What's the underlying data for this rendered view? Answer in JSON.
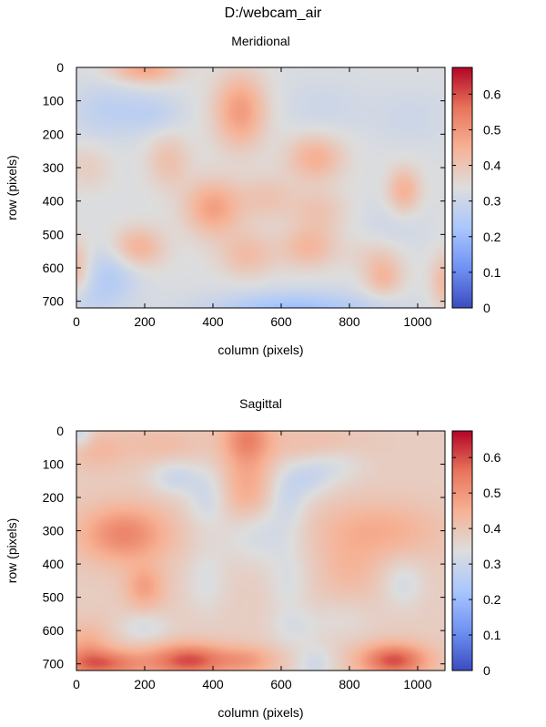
{
  "title": "D:/webcam_air",
  "colormap": {
    "name": "coolwarm",
    "stops": [
      "#3b4cc0",
      "#6f92f3",
      "#aac7fd",
      "#dddddd",
      "#f7b194",
      "#e7745b",
      "#b40426"
    ]
  },
  "chart_data": [
    {
      "type": "heatmap",
      "title": "Meridional",
      "xlabel": "column (pixels)",
      "ylabel": "row (pixels)",
      "xlim": [
        0,
        1080
      ],
      "ylim": [
        720,
        0
      ],
      "xticks": [
        "0",
        "200",
        "400",
        "600",
        "800",
        "1000"
      ],
      "yticks": [
        "0",
        "100",
        "200",
        "300",
        "400",
        "500",
        "600",
        "700"
      ],
      "colorbar": {
        "range": [
          0,
          0.675
        ],
        "ticks": [
          "0",
          "0.1",
          "0.2",
          "0.3",
          "0.4",
          "0.5",
          "0.6"
        ]
      },
      "base_value": 0.33,
      "blobs": [
        {
          "x": 200,
          "y": 5,
          "sx": 70,
          "sy": 30,
          "a": 0.14
        },
        {
          "x": 90,
          "y": 130,
          "sx": 80,
          "sy": 60,
          "a": -0.06
        },
        {
          "x": 230,
          "y": 140,
          "sx": 60,
          "sy": 40,
          "a": -0.05
        },
        {
          "x": 480,
          "y": 130,
          "sx": 55,
          "sy": 80,
          "a": 0.16
        },
        {
          "x": 270,
          "y": 280,
          "sx": 45,
          "sy": 60,
          "a": 0.08
        },
        {
          "x": 30,
          "y": 300,
          "sx": 50,
          "sy": 50,
          "a": 0.05
        },
        {
          "x": 700,
          "y": 270,
          "sx": 60,
          "sy": 50,
          "a": 0.12
        },
        {
          "x": 720,
          "y": 120,
          "sx": 90,
          "sy": 60,
          "a": -0.03
        },
        {
          "x": 980,
          "y": 150,
          "sx": 80,
          "sy": 60,
          "a": -0.03
        },
        {
          "x": 960,
          "y": 370,
          "sx": 35,
          "sy": 50,
          "a": 0.12
        },
        {
          "x": 400,
          "y": 420,
          "sx": 60,
          "sy": 60,
          "a": 0.15
        },
        {
          "x": 560,
          "y": 390,
          "sx": 60,
          "sy": 50,
          "a": 0.07
        },
        {
          "x": 710,
          "y": 430,
          "sx": 60,
          "sy": 50,
          "a": 0.07
        },
        {
          "x": 180,
          "y": 540,
          "sx": 55,
          "sy": 45,
          "a": 0.12
        },
        {
          "x": 500,
          "y": 560,
          "sx": 60,
          "sy": 50,
          "a": 0.09
        },
        {
          "x": 680,
          "y": 540,
          "sx": 60,
          "sy": 45,
          "a": 0.1
        },
        {
          "x": 880,
          "y": 560,
          "sx": 60,
          "sy": 40,
          "a": 0.05
        },
        {
          "x": 100,
          "y": 620,
          "sx": 60,
          "sy": 60,
          "a": -0.08
        },
        {
          "x": 0,
          "y": 600,
          "sx": 30,
          "sy": 60,
          "a": 0.1
        },
        {
          "x": 900,
          "y": 630,
          "sx": 40,
          "sy": 40,
          "a": 0.1
        },
        {
          "x": 1080,
          "y": 640,
          "sx": 30,
          "sy": 60,
          "a": 0.1
        },
        {
          "x": 640,
          "y": 730,
          "sx": 170,
          "sy": 40,
          "a": -0.13
        },
        {
          "x": 30,
          "y": 700,
          "sx": 60,
          "sy": 40,
          "a": -0.04
        },
        {
          "x": 930,
          "y": 480,
          "sx": 70,
          "sy": 60,
          "a": -0.03
        }
      ]
    },
    {
      "type": "heatmap",
      "title": "Sagittal",
      "xlabel": "column (pixels)",
      "ylabel": "row (pixels)",
      "xlim": [
        0,
        1080
      ],
      "ylim": [
        720,
        0
      ],
      "xticks": [
        "0",
        "200",
        "400",
        "600",
        "800",
        "1000"
      ],
      "yticks": [
        "0",
        "100",
        "200",
        "300",
        "400",
        "500",
        "600",
        "700"
      ],
      "colorbar": {
        "range": [
          0,
          0.675
        ],
        "ticks": [
          "0",
          "0.1",
          "0.2",
          "0.3",
          "0.4",
          "0.5",
          "0.6"
        ]
      },
      "base_value": 0.38,
      "blobs": [
        {
          "x": 500,
          "y": 20,
          "sx": 50,
          "sy": 60,
          "a": 0.15
        },
        {
          "x": 500,
          "y": 180,
          "sx": 50,
          "sy": 70,
          "a": 0.08
        },
        {
          "x": 60,
          "y": 60,
          "sx": 60,
          "sy": 40,
          "a": 0.05
        },
        {
          "x": 250,
          "y": 40,
          "sx": 90,
          "sy": 40,
          "a": 0.04
        },
        {
          "x": 700,
          "y": 40,
          "sx": 100,
          "sy": 40,
          "a": 0.04
        },
        {
          "x": 10,
          "y": 10,
          "sx": 25,
          "sy": 30,
          "a": -0.08
        },
        {
          "x": 290,
          "y": 140,
          "sx": 50,
          "sy": 35,
          "a": -0.08
        },
        {
          "x": 380,
          "y": 200,
          "sx": 40,
          "sy": 60,
          "a": -0.07
        },
        {
          "x": 620,
          "y": 200,
          "sx": 40,
          "sy": 60,
          "a": -0.07
        },
        {
          "x": 680,
          "y": 140,
          "sx": 50,
          "sy": 40,
          "a": -0.07
        },
        {
          "x": 760,
          "y": 100,
          "sx": 60,
          "sy": 40,
          "a": -0.05
        },
        {
          "x": 540,
          "y": 310,
          "sx": 80,
          "sy": 60,
          "a": -0.07
        },
        {
          "x": 140,
          "y": 310,
          "sx": 90,
          "sy": 60,
          "a": 0.15
        },
        {
          "x": 200,
          "y": 470,
          "sx": 40,
          "sy": 45,
          "a": 0.1
        },
        {
          "x": 880,
          "y": 300,
          "sx": 130,
          "sy": 60,
          "a": 0.08
        },
        {
          "x": 800,
          "y": 420,
          "sx": 60,
          "sy": 60,
          "a": 0.05
        },
        {
          "x": 380,
          "y": 450,
          "sx": 40,
          "sy": 70,
          "a": -0.05
        },
        {
          "x": 620,
          "y": 450,
          "sx": 40,
          "sy": 70,
          "a": -0.05
        },
        {
          "x": 960,
          "y": 460,
          "sx": 40,
          "sy": 50,
          "a": -0.06
        },
        {
          "x": 200,
          "y": 590,
          "sx": 50,
          "sy": 30,
          "a": -0.06
        },
        {
          "x": 780,
          "y": 570,
          "sx": 60,
          "sy": 40,
          "a": -0.03
        },
        {
          "x": 640,
          "y": 590,
          "sx": 50,
          "sy": 40,
          "a": -0.05
        },
        {
          "x": 700,
          "y": 700,
          "sx": 40,
          "sy": 40,
          "a": -0.07
        },
        {
          "x": 80,
          "y": 700,
          "sx": 90,
          "sy": 30,
          "a": 0.18
        },
        {
          "x": 330,
          "y": 690,
          "sx": 80,
          "sy": 35,
          "a": 0.22
        },
        {
          "x": 930,
          "y": 690,
          "sx": 70,
          "sy": 35,
          "a": 0.22
        },
        {
          "x": 500,
          "y": 690,
          "sx": 60,
          "sy": 30,
          "a": 0.1
        },
        {
          "x": 30,
          "y": 650,
          "sx": 50,
          "sy": 50,
          "a": 0.08
        }
      ]
    }
  ]
}
